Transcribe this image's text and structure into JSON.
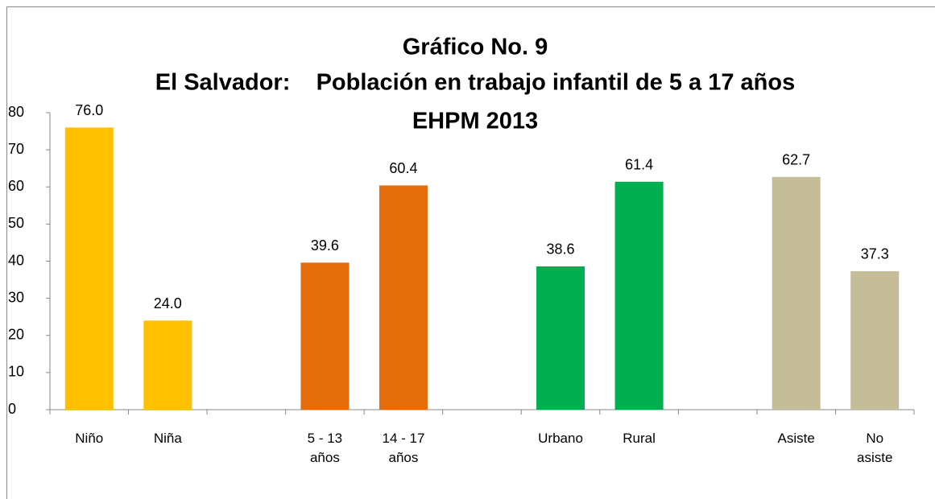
{
  "chart_data": {
    "type": "bar",
    "title": [
      "Gráfico No. 9",
      "El Salvador:    Población en trabajo infantil de 5 a 17 años",
      "EHPM 2013"
    ],
    "categories": [
      "Niño",
      "Niña",
      null,
      "5 - 13 años",
      "14 - 17 años",
      null,
      "Urbano",
      "Rural",
      null,
      "Asiste",
      "No asiste"
    ],
    "values": [
      76.0,
      24.0,
      null,
      39.6,
      60.4,
      null,
      38.6,
      61.4,
      null,
      62.7,
      37.3
    ],
    "value_labels": [
      "76.0",
      "24.0",
      null,
      "39.6",
      "60.4",
      null,
      "38.6",
      "61.4",
      null,
      "62.7",
      "37.3"
    ],
    "colors": [
      "#ffc000",
      "#ffc000",
      null,
      "#e46c0a",
      "#e46c0a",
      null,
      "#00b050",
      "#00b050",
      null,
      "#c4bd97",
      "#c4bd97"
    ],
    "ylim": [
      0,
      80
    ],
    "yticks": [
      0,
      10,
      20,
      30,
      40,
      50,
      60,
      70,
      80
    ]
  }
}
